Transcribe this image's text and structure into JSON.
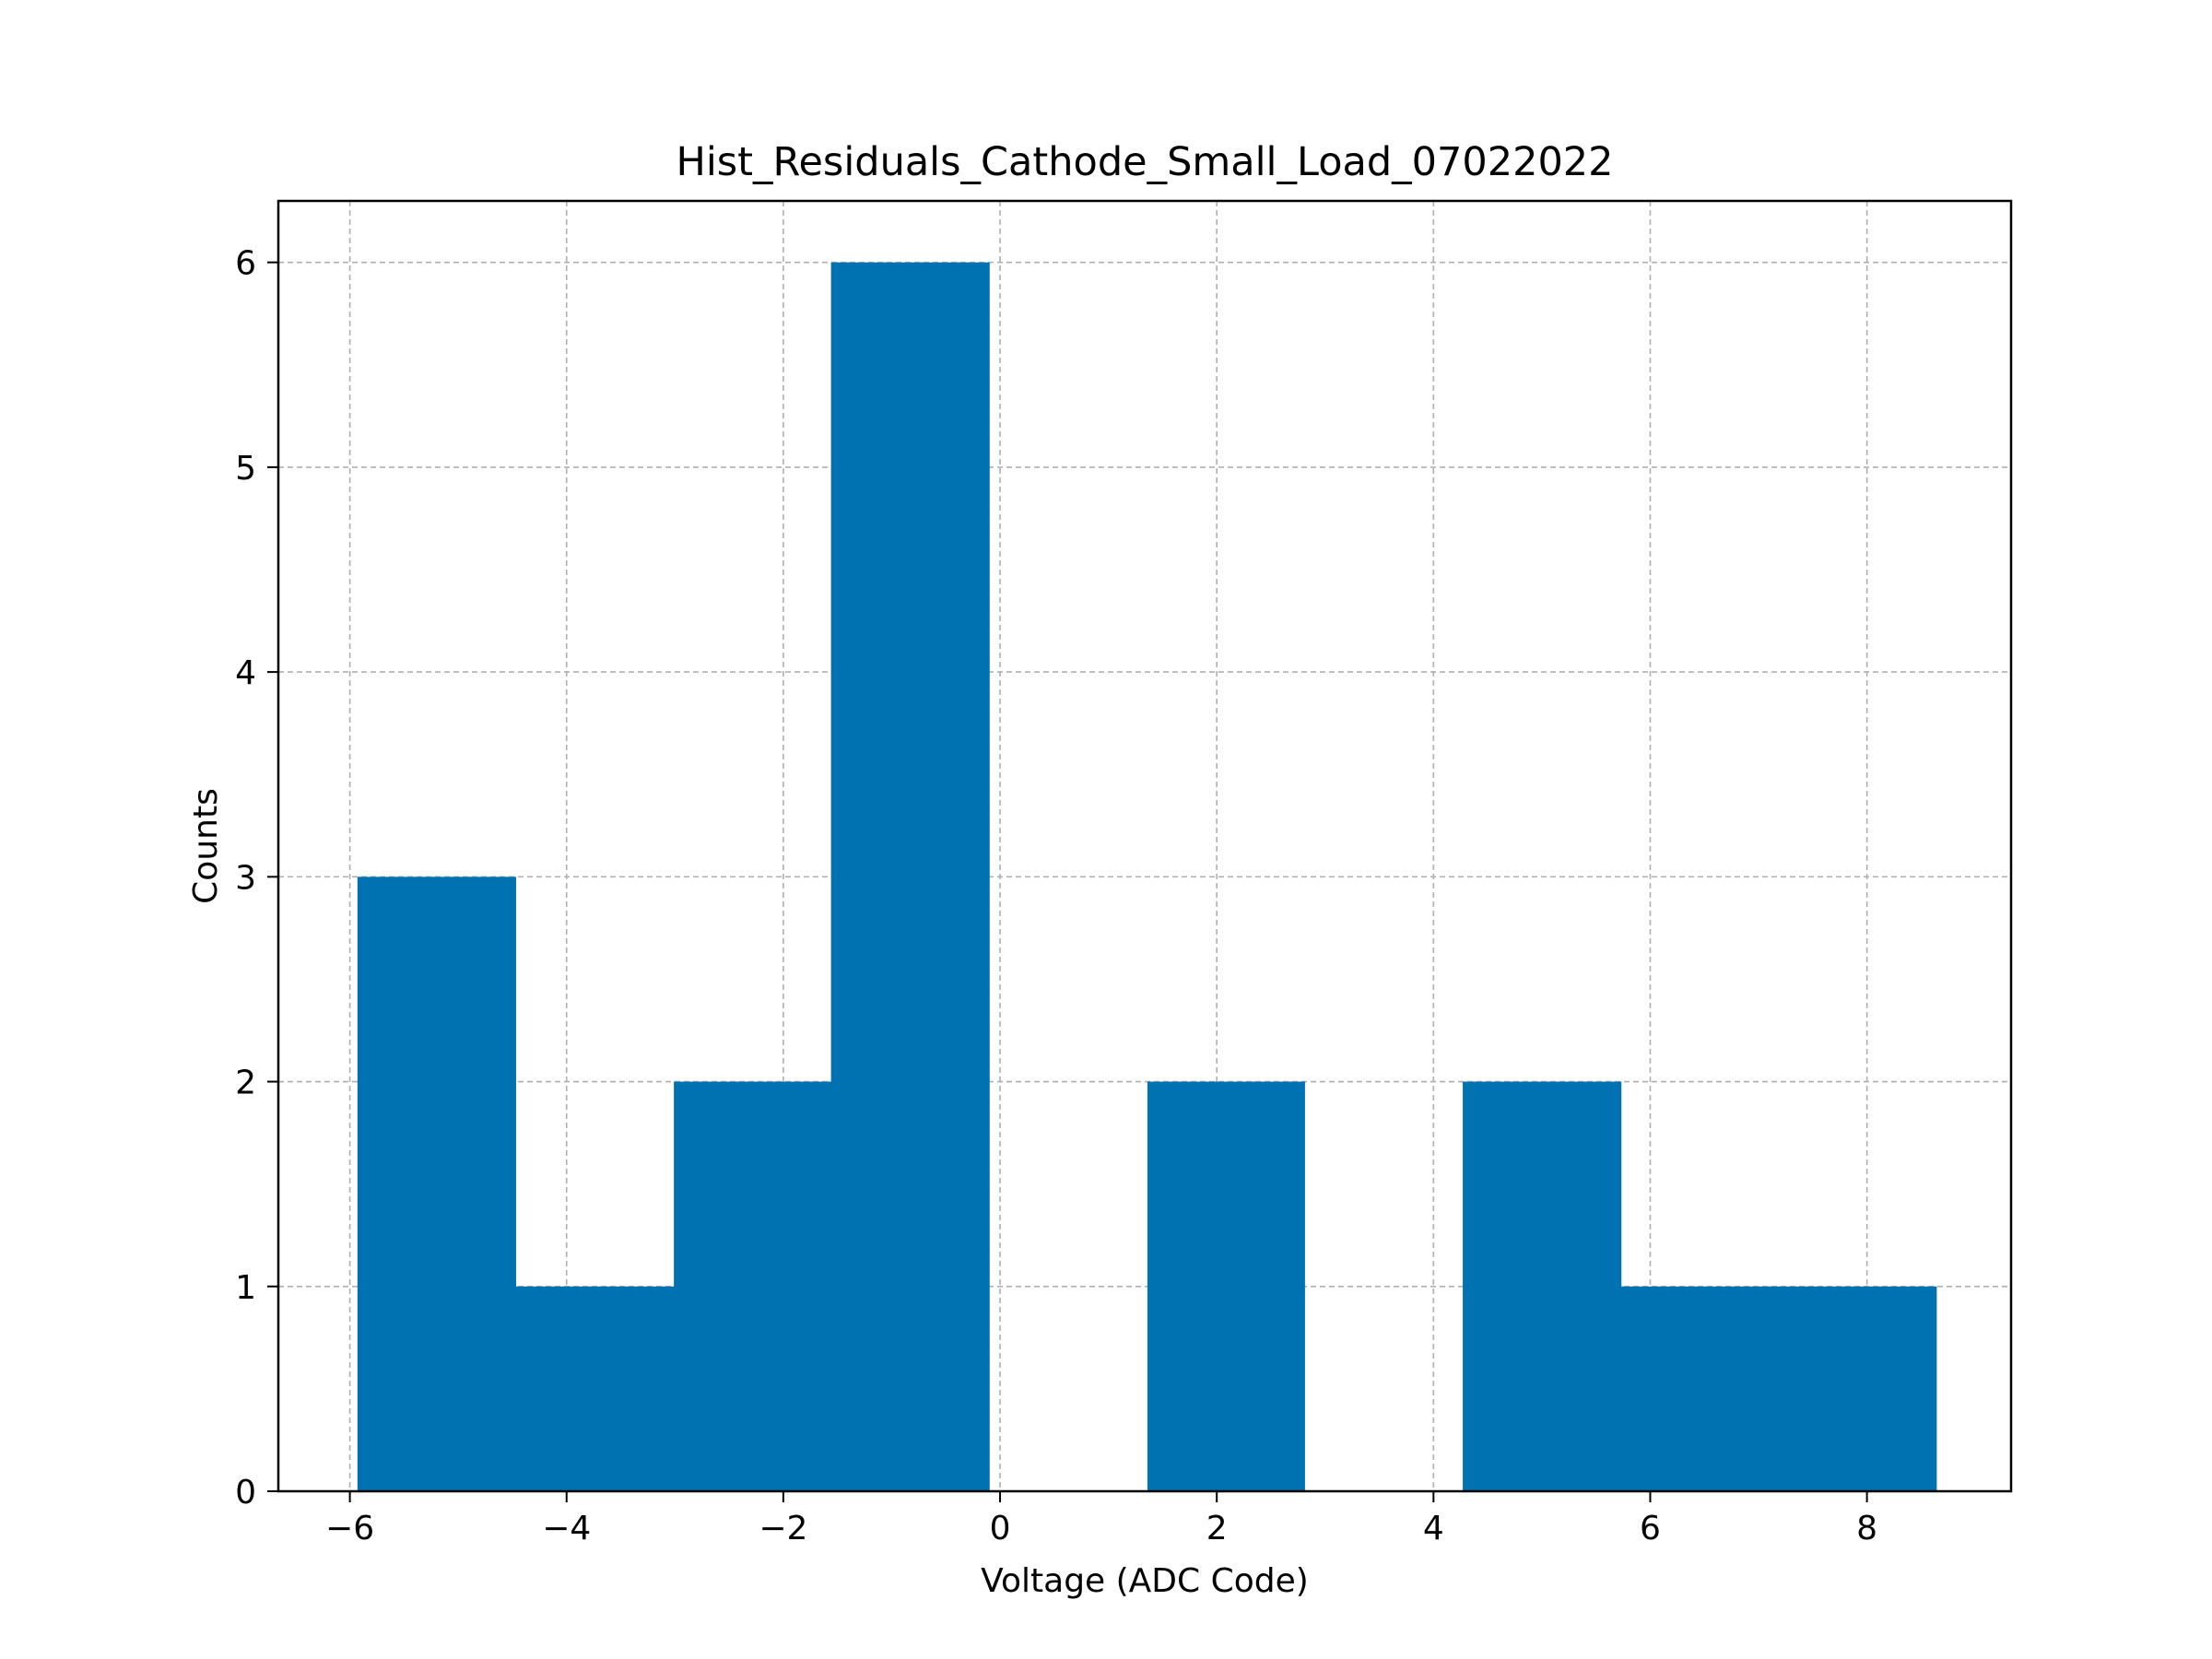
{
  "chart_data": {
    "type": "bar",
    "title": "Hist_Residuals_Cathode_Small_Load_07022022",
    "xlabel": "Voltage (ADC Code)",
    "ylabel": "Counts",
    "xlim": [
      -6.66,
      9.33
    ],
    "ylim": [
      0,
      6.3
    ],
    "xticks": [
      -6,
      -4,
      -2,
      0,
      2,
      4,
      6,
      8
    ],
    "xtick_labels": [
      "−6",
      "−4",
      "−2",
      "0",
      "2",
      "4",
      "6",
      "8"
    ],
    "yticks": [
      0,
      1,
      2,
      3,
      4,
      5,
      6
    ],
    "ytick_labels": [
      "0",
      "1",
      "2",
      "3",
      "4",
      "5",
      "6"
    ],
    "grid": true,
    "bins": [
      {
        "x0": -5.93,
        "x1": -4.47,
        "count": 3
      },
      {
        "x0": -4.47,
        "x1": -3.01,
        "count": 1
      },
      {
        "x0": -3.01,
        "x1": -1.56,
        "count": 2
      },
      {
        "x0": -1.56,
        "x1": -0.1,
        "count": 6
      },
      {
        "x0": -0.1,
        "x1": 1.36,
        "count": 0
      },
      {
        "x0": 1.36,
        "x1": 2.81,
        "count": 2
      },
      {
        "x0": 2.81,
        "x1": 4.27,
        "count": 0
      },
      {
        "x0": 4.27,
        "x1": 5.73,
        "count": 2
      },
      {
        "x0": 5.73,
        "x1": 7.18,
        "count": 1
      },
      {
        "x0": 7.18,
        "x1": 8.64,
        "count": 1
      }
    ],
    "bar_color": "#0072b2"
  }
}
